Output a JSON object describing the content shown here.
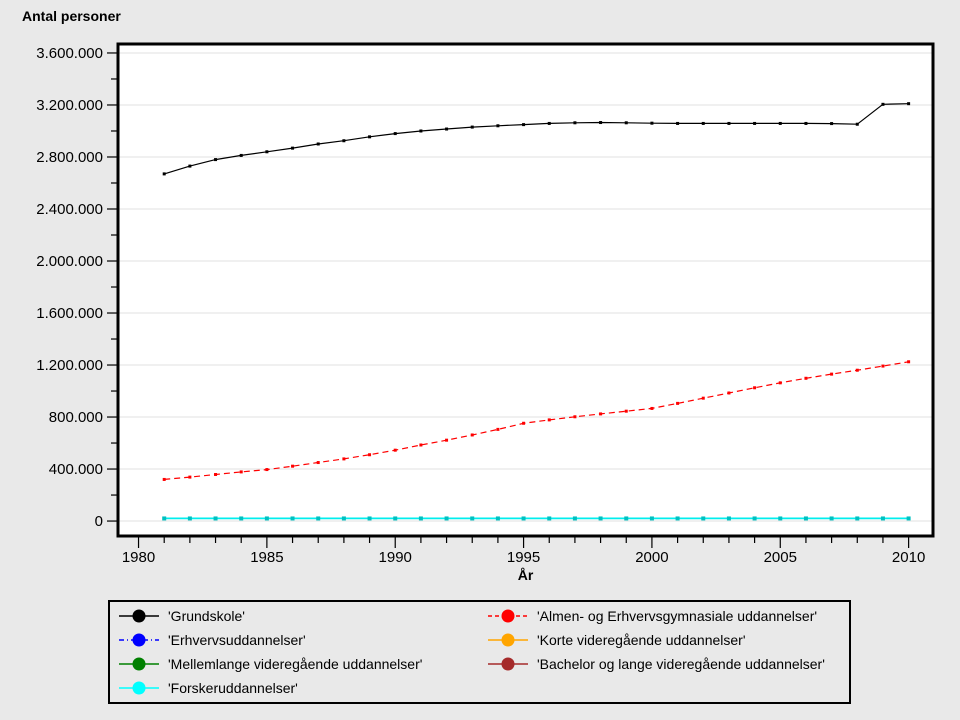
{
  "chart_data": {
    "type": "line",
    "title": "Antal personer",
    "xlabel": "År",
    "ylabel": "Antal personer",
    "x": [
      1981,
      1982,
      1983,
      1984,
      1985,
      1986,
      1987,
      1988,
      1989,
      1990,
      1991,
      1992,
      1993,
      1994,
      1995,
      1996,
      1997,
      1998,
      1999,
      2000,
      2001,
      2002,
      2003,
      2004,
      2005,
      2006,
      2007,
      2008,
      2009,
      2010
    ],
    "x_major_ticks": [
      1980,
      1985,
      1990,
      1995,
      2000,
      2005,
      2010
    ],
    "x_minor_tick_step": 1,
    "xlim": [
      1979.2,
      2010.95
    ],
    "ylim": [
      -115000,
      3669000
    ],
    "y_ticks": [
      {
        "value": 0,
        "label": "0"
      },
      {
        "value": 400000,
        "label": "400.000"
      },
      {
        "value": 800000,
        "label": "800.000"
      },
      {
        "value": 1200000,
        "label": "1.200.000"
      },
      {
        "value": 1600000,
        "label": "1.600.000"
      },
      {
        "value": 2000000,
        "label": "2.000.000"
      },
      {
        "value": 2400000,
        "label": "2.400.000"
      },
      {
        "value": 2800000,
        "label": "2.800.000"
      },
      {
        "value": 3200000,
        "label": "3.200.000"
      },
      {
        "value": 3600000,
        "label": "3.600.000"
      }
    ],
    "y_minor_tick_step": 200000,
    "grid": {
      "horizontal": true,
      "color": "#e2e2e2"
    },
    "colors": {
      "page_bg": "#e9e9e9",
      "plot_bg": "#ffffff",
      "frame": "#000000"
    },
    "legend_position": "bottom",
    "series": [
      {
        "id": "grundskole",
        "name": "'Grundskole'",
        "color": "#000000",
        "line": "solid",
        "marker": "square",
        "values": [
          2670000,
          2730000,
          2780000,
          2812000,
          2840000,
          2868000,
          2900000,
          2925000,
          2955000,
          2980000,
          3000000,
          3015000,
          3030000,
          3040000,
          3049000,
          3058000,
          3063000,
          3065000,
          3063000,
          3060000,
          3058000,
          3058000,
          3058000,
          3058000,
          3058000,
          3058000,
          3057000,
          3052000,
          3205000,
          3210000
        ]
      },
      {
        "id": "almen-og-erhvervsgymnasiale",
        "name": "'Almen- og Erhvervsgymnasiale uddannelser'",
        "color": "#ff0000",
        "line": "dashed",
        "marker": "square",
        "values": [
          320000,
          338000,
          358000,
          378000,
          396000,
          422000,
          450000,
          478000,
          510000,
          545000,
          585000,
          622000,
          662000,
          705000,
          752000,
          778000,
          802000,
          824000,
          845000,
          866000,
          905000,
          945000,
          985000,
          1025000,
          1063000,
          1098000,
          1130000,
          1160000,
          1192000,
          1225000
        ]
      },
      {
        "id": "erhvervsuddannelser",
        "name": "'Erhvervsuddannelser'",
        "color": "#0000ff",
        "line": "dash-dot",
        "marker": "circle",
        "values": []
      },
      {
        "id": "korte-videregaende",
        "name": "'Korte videregående uddannelser'",
        "color": "#ffa500",
        "line": "solid",
        "marker": "circle",
        "values": []
      },
      {
        "id": "mellemlange-videregaende",
        "name": "'Mellemlange videregående uddannelser'",
        "color": "#008000",
        "line": "solid",
        "marker": "circle",
        "values": []
      },
      {
        "id": "bachelor-og-lange",
        "name": "'Bachelor og lange videregående uddannelser'",
        "color": "#a52a2a",
        "line": "solid",
        "marker": "circle",
        "values": []
      },
      {
        "id": "forskeruddannelser",
        "name": "'Forskeruddannelser'",
        "color": "#00eeee",
        "marker_color": "#00c0c0",
        "line": "solid",
        "marker": "square",
        "values": [
          20000,
          20000,
          20000,
          20000,
          20000,
          20000,
          20000,
          20000,
          20000,
          20000,
          20000,
          20000,
          20000,
          20000,
          20000,
          20000,
          20000,
          20000,
          20000,
          20000,
          20000,
          20000,
          20000,
          20000,
          20000,
          20000,
          20000,
          20000,
          20000,
          20000
        ]
      }
    ]
  },
  "legend": {
    "columns": [
      {
        "items": [
          {
            "id": "grundskole",
            "label": "'Grundskole'",
            "color": "#000000",
            "line": "solid"
          },
          {
            "id": "erhvervsuddannelser",
            "label": "'Erhvervsuddannelser'",
            "color": "#0000ff",
            "line": "dash-dot"
          },
          {
            "id": "mellemlange-videregaende",
            "label": "'Mellemlange videregående uddannelser'",
            "color": "#008000",
            "line": "solid"
          },
          {
            "id": "forskeruddannelser",
            "label": "'Forskeruddannelser'",
            "color": "#00ffff",
            "line": "solid"
          }
        ]
      },
      {
        "items": [
          {
            "id": "almen-og-erhvervsgymnasiale",
            "label": "'Almen- og Erhvervsgymnasiale uddannelser'",
            "color": "#ff0000",
            "line": "dashed"
          },
          {
            "id": "korte-videregaende",
            "label": "'Korte videregående uddannelser'",
            "color": "#ffa500",
            "line": "solid"
          },
          {
            "id": "bachelor-og-lange",
            "label": "'Bachelor og lange videregående uddannelser'",
            "color": "#a52a2a",
            "line": "solid"
          }
        ]
      }
    ]
  }
}
